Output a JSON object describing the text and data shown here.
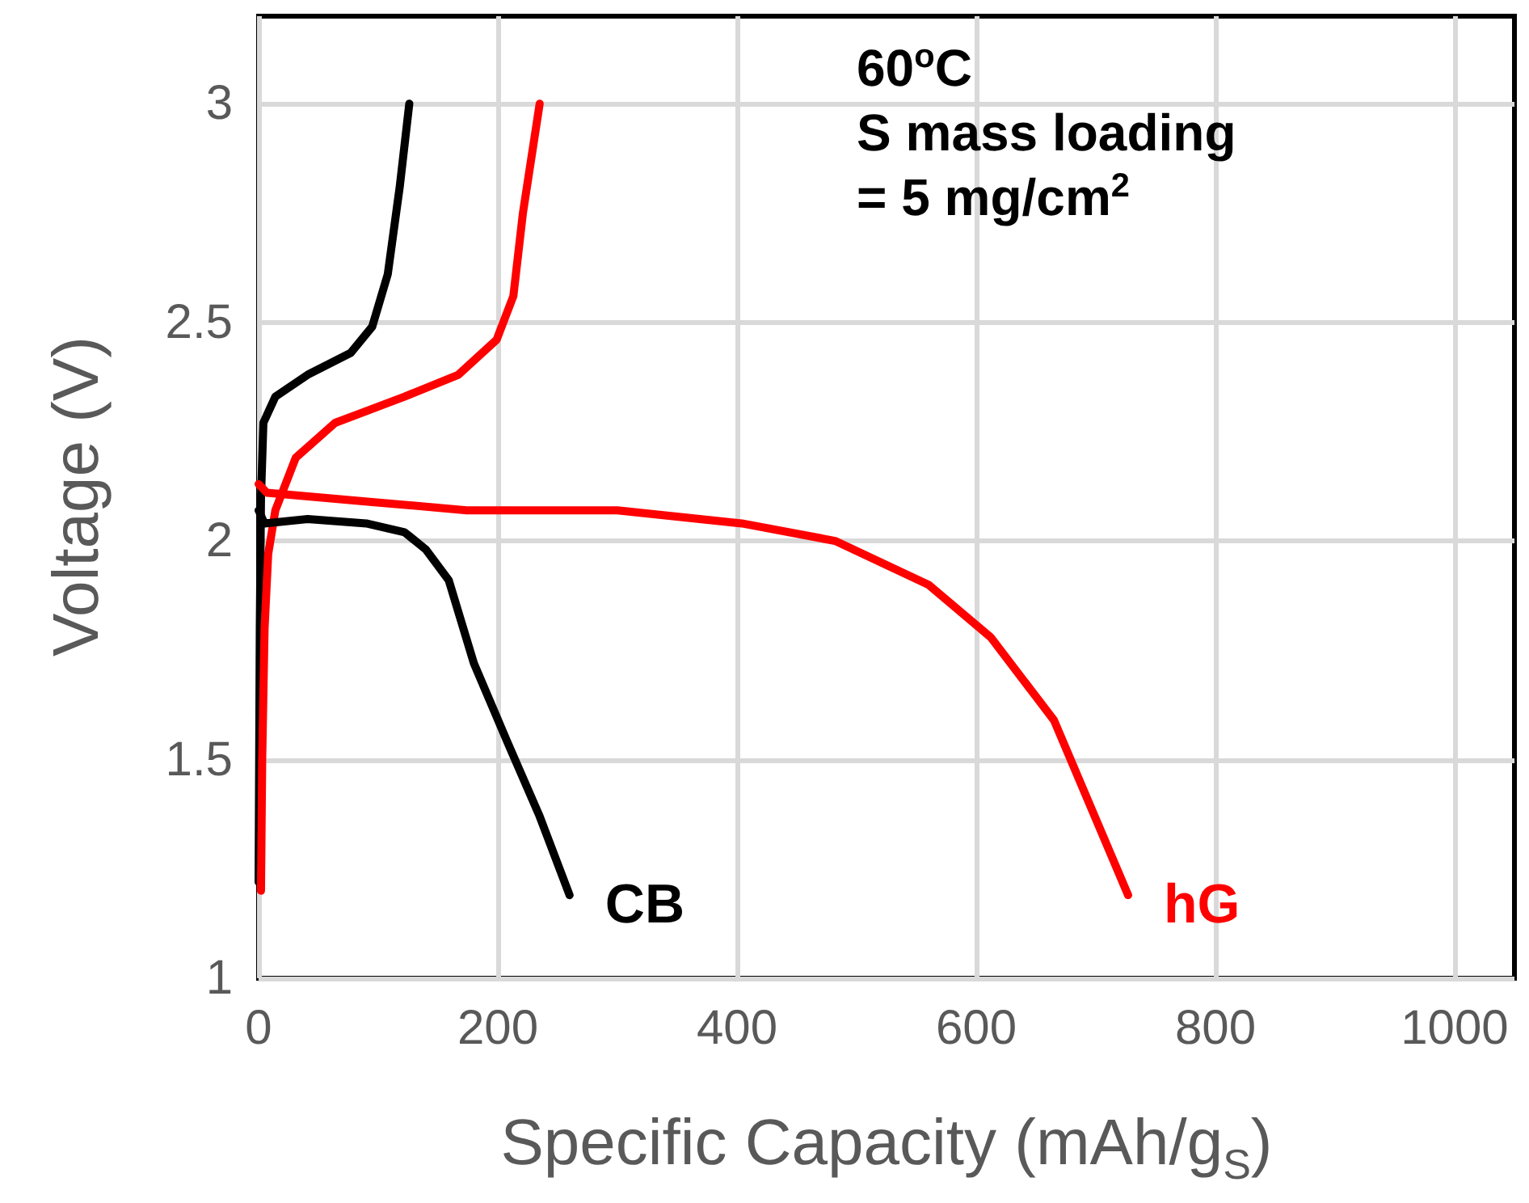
{
  "chart_data": {
    "type": "line",
    "xlabel": "Specific Capacity (mAh/g$_{S}$)",
    "ylabel": "Voltage (V)",
    "annotations": [
      "60$^{o}$C\nS mass loading\n= 5 mg/cm$^{2}$"
    ],
    "xlim": [
      0,
      1050
    ],
    "xticks": [
      0,
      200,
      400,
      600,
      800,
      1000
    ],
    "ylim": [
      1,
      3.2
    ],
    "yticks": [
      1,
      1.5,
      2,
      2.5,
      3
    ],
    "grid": true,
    "legend": false,
    "marker": "none",
    "line_style": "solid",
    "series": [
      {
        "color": "#000000",
        "x": [
          0,
          1,
          2,
          4,
          14,
          41,
          77,
          95,
          108,
          118,
          126
        ],
        "values": [
          1.22,
          1.8,
          2.1,
          2.27,
          2.33,
          2.38,
          2.43,
          2.49,
          2.61,
          2.81,
          3.0
        ]
      },
      {
        "color": "#ff0000",
        "x": [
          2,
          3,
          5,
          8,
          14,
          31,
          64,
          122,
          167,
          199,
          213,
          221,
          235
        ],
        "values": [
          1.2,
          1.5,
          1.8,
          1.97,
          2.07,
          2.19,
          2.27,
          2.33,
          2.38,
          2.46,
          2.56,
          2.75,
          3.0
        ]
      },
      {
        "name": "CB",
        "color": "#000000",
        "x": [
          0,
          5,
          41,
          90,
          122,
          140,
          159,
          180,
          208,
          235,
          260
        ],
        "values": [
          2.07,
          2.04,
          2.05,
          2.04,
          2.02,
          1.98,
          1.91,
          1.72,
          1.54,
          1.37,
          1.19
        ]
      },
      {
        "name": "hG",
        "color": "#ff0000",
        "x": [
          0,
          7,
          91,
          174,
          237,
          300,
          404,
          482,
          560,
          612,
          665,
          727
        ],
        "values": [
          2.13,
          2.11,
          2.09,
          2.07,
          2.07,
          2.07,
          2.04,
          2.0,
          1.9,
          1.78,
          1.59,
          1.19
        ]
      }
    ]
  }
}
